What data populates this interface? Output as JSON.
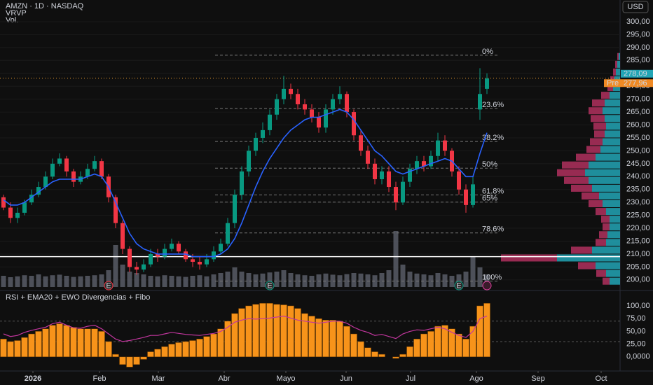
{
  "chart_data": [
    {
      "type": "candlestick",
      "title": "AMZN · 1D · NASDAQ",
      "indicators": [
        "VRVP",
        "Vol."
      ],
      "currency": "USD",
      "xlim": [
        -0.5,
        88
      ],
      "ylim": [
        196.7,
        308.4
      ],
      "xticks": [
        {
          "value": 4.2,
          "label": "2026"
        },
        {
          "value": 13.7,
          "label": "Feb"
        },
        {
          "value": 22.1,
          "label": "Mar"
        },
        {
          "value": 31.5,
          "label": "Abr"
        },
        {
          "value": 40.3,
          "label": "Mayo"
        },
        {
          "value": 48.9,
          "label": "Jun"
        },
        {
          "value": 58.1,
          "label": "Jul"
        },
        {
          "value": 67.5,
          "label": "Ago"
        },
        {
          "value": 76.3,
          "label": "Sep"
        },
        {
          "value": 85.3,
          "label": "Oct"
        }
      ],
      "yticks": [
        {
          "value": 200,
          "label": "200,00"
        },
        {
          "value": 205,
          "label": "205,00"
        },
        {
          "value": 210,
          "label": "210,00"
        },
        {
          "value": 215,
          "label": "215,00"
        },
        {
          "value": 220,
          "label": "220,00"
        },
        {
          "value": 225,
          "label": "225,00"
        },
        {
          "value": 230,
          "label": "230,00"
        },
        {
          "value": 235,
          "label": "235,00"
        },
        {
          "value": 240,
          "label": "240,00"
        },
        {
          "value": 245,
          "label": "245,00"
        },
        {
          "value": 250,
          "label": "250,00"
        },
        {
          "value": 255,
          "label": "255,00"
        },
        {
          "value": 260,
          "label": "260,00"
        },
        {
          "value": 265,
          "label": "265,00"
        },
        {
          "value": 270,
          "label": "270,00"
        },
        {
          "value": 275,
          "label": "275,00"
        },
        {
          "value": 280,
          "label": "280,00"
        },
        {
          "value": 285,
          "label": "285,00"
        },
        {
          "value": 290,
          "label": "290,00"
        },
        {
          "value": 295,
          "label": "295,00"
        },
        {
          "value": 300,
          "label": "300,00"
        }
      ],
      "up_color": "#089981",
      "down_color": "#f23645",
      "open": [
        232,
        228,
        224,
        226,
        230,
        233,
        236,
        240,
        245,
        247,
        242,
        238,
        240,
        243,
        246,
        240,
        232,
        222,
        212,
        205,
        204,
        206,
        210,
        209,
        212,
        214,
        211,
        208,
        207,
        206,
        208,
        211,
        214,
        222,
        233,
        242,
        250,
        255,
        258,
        264,
        270,
        274,
        272,
        268,
        266,
        263,
        259,
        266,
        270,
        272,
        265,
        256,
        250,
        245,
        239,
        242,
        236,
        230,
        238,
        243,
        246,
        244,
        248,
        254,
        250,
        242,
        235,
        229,
        266,
        274
      ],
      "high": [
        233,
        230,
        228,
        231,
        235,
        238,
        242,
        247,
        249,
        248,
        243,
        242,
        245,
        248,
        247,
        241,
        233,
        223,
        213,
        207,
        208,
        212,
        212,
        214,
        216,
        215,
        212,
        210,
        209,
        210,
        213,
        216,
        224,
        235,
        244,
        252,
        257,
        261,
        266,
        272,
        279,
        276,
        274,
        270,
        268,
        265,
        268,
        272,
        275,
        273,
        266,
        258,
        252,
        247,
        244,
        244,
        238,
        240,
        245,
        248,
        248,
        250,
        257,
        256,
        251,
        244,
        237,
        240,
        282,
        280
      ],
      "low": [
        227,
        222,
        222,
        225,
        229,
        232,
        235,
        239,
        244,
        240,
        236,
        237,
        239,
        242,
        239,
        230,
        220,
        210,
        203,
        202,
        203,
        205,
        207,
        208,
        211,
        210,
        207,
        205,
        204,
        205,
        207,
        210,
        213,
        220,
        231,
        240,
        248,
        253,
        256,
        262,
        268,
        270,
        266,
        264,
        261,
        257,
        257,
        264,
        268,
        263,
        254,
        248,
        243,
        237,
        237,
        234,
        227,
        229,
        236,
        241,
        242,
        243,
        246,
        248,
        240,
        233,
        226,
        228,
        262,
        272
      ],
      "close": [
        228,
        224,
        226,
        230,
        233,
        236,
        240,
        245,
        247,
        242,
        238,
        240,
        243,
        246,
        240,
        232,
        222,
        212,
        205,
        204,
        206,
        210,
        209,
        212,
        214,
        211,
        208,
        207,
        206,
        208,
        211,
        214,
        222,
        233,
        242,
        250,
        255,
        258,
        264,
        270,
        274,
        272,
        268,
        266,
        263,
        259,
        266,
        270,
        272,
        265,
        256,
        250,
        245,
        239,
        242,
        236,
        230,
        238,
        243,
        246,
        244,
        248,
        254,
        250,
        242,
        235,
        229,
        237,
        272,
        278
      ],
      "volume": {
        "color": "#5d606b",
        "values": [
          40,
          35,
          38,
          42,
          40,
          45,
          38,
          42,
          44,
          40,
          36,
          38,
          40,
          42,
          45,
          60,
          150,
          80,
          55,
          50,
          45,
          40,
          38,
          42,
          40,
          38,
          36,
          40,
          42,
          38,
          45,
          50,
          55,
          70,
          55,
          50,
          45,
          48,
          52,
          55,
          60,
          50,
          45,
          42,
          40,
          45,
          48,
          44,
          42,
          46,
          50,
          48,
          45,
          42,
          50,
          60,
          200,
          80,
          55,
          48,
          45,
          42,
          50,
          45,
          40,
          45,
          55,
          110,
          70,
          45
        ]
      },
      "ema": {
        "color": "#2962ff",
        "values": [
          231,
          229,
          229,
          230,
          232,
          234,
          236,
          238,
          239,
          239,
          239,
          239,
          240,
          241,
          240,
          236,
          230,
          224,
          218,
          214,
          212,
          211,
          210,
          210,
          210,
          210,
          210,
          209,
          209,
          209,
          209,
          210,
          212,
          216,
          222,
          229,
          236,
          242,
          247,
          251,
          255,
          258,
          260,
          262,
          263,
          263,
          264,
          265,
          266,
          265,
          262,
          258,
          254,
          250,
          248,
          245,
          242,
          241,
          242,
          243,
          244,
          245,
          246,
          247,
          246,
          243,
          240,
          240,
          249,
          257
        ]
      },
      "fib": [
        {
          "value": 287,
          "label": "0%"
        },
        {
          "value": 266.4,
          "label": "23.6%"
        },
        {
          "value": 253.6,
          "label": "38.2%"
        },
        {
          "value": 243.25,
          "label": "50%"
        },
        {
          "value": 232.9,
          "label": "61.8%"
        },
        {
          "value": 230.1,
          "label": "65%"
        },
        {
          "value": 218.2,
          "label": "78.6%"
        },
        {
          "value": 199.5,
          "label": "100%"
        }
      ],
      "hline": 209,
      "last_price": {
        "value": 278.09,
        "label": "278,09"
      },
      "pre_market": {
        "name": "Pre",
        "value": 277.96,
        "label": "277,96"
      },
      "events": [
        {
          "x": 15,
          "label": "E"
        },
        {
          "x": 38,
          "label": "E"
        },
        {
          "x": 65,
          "label": "E"
        }
      ],
      "profile": {
        "prices": [
          199.5,
          202.5,
          205.5,
          208.5,
          211.5,
          214.5,
          217.5,
          220.5,
          223.5,
          226.5,
          229.5,
          232.5,
          235.5,
          238.5,
          241.5,
          244.5,
          247.5,
          250.5,
          253.5,
          256.5,
          259.5,
          262.5,
          265.5,
          268.5,
          271.5,
          274.5,
          277.5,
          280.5,
          283.5,
          286.5
        ],
        "up": [
          15,
          20,
          35,
          90,
          40,
          20,
          18,
          15,
          15,
          20,
          25,
          30,
          40,
          45,
          50,
          45,
          35,
          28,
          25,
          22,
          20,
          22,
          25,
          22,
          15,
          10,
          8,
          6,
          4,
          2
        ],
        "down": [
          10,
          14,
          25,
          80,
          30,
          15,
          12,
          10,
          12,
          15,
          20,
          25,
          30,
          35,
          40,
          38,
          28,
          20,
          18,
          15,
          18,
          20,
          20,
          18,
          12,
          8,
          6,
          4,
          3,
          2
        ],
        "up_color": "#22a5b5",
        "down_color": "#b0305e"
      }
    },
    {
      "type": "bar",
      "title": "RSI + EMA20 + EWO Divergencias + Fibo",
      "ylim": [
        -14,
        126
      ],
      "yticks": [
        {
          "value": 0,
          "label": "0,0000"
        },
        {
          "value": 25,
          "label": "25,00"
        },
        {
          "value": 50,
          "label": "50,00"
        },
        {
          "value": 75,
          "label": "75,00"
        },
        {
          "value": 100,
          "label": "100,00"
        }
      ],
      "bands": [
        30,
        70
      ],
      "color": "#f7931a",
      "values": [
        35,
        30,
        32,
        38,
        45,
        50,
        55,
        62,
        65,
        62,
        58,
        55,
        55,
        55,
        50,
        30,
        5,
        -15,
        -20,
        -15,
        -5,
        10,
        15,
        20,
        25,
        28,
        30,
        32,
        35,
        40,
        45,
        55,
        70,
        85,
        95,
        100,
        103,
        105,
        105,
        103,
        102,
        100,
        95,
        85,
        80,
        75,
        72,
        72,
        70,
        60,
        45,
        30,
        18,
        10,
        5,
        0,
        -3,
        5,
        20,
        35,
        45,
        50,
        60,
        62,
        55,
        45,
        35,
        60,
        100,
        105
      ],
      "line": {
        "color": "#c2369e",
        "values": [
          45,
          40,
          42,
          48,
          52,
          55,
          58,
          65,
          68,
          62,
          57,
          56,
          60,
          62,
          55,
          45,
          35,
          30,
          32,
          35,
          38,
          42,
          42,
          45,
          48,
          46,
          44,
          43,
          42,
          44,
          46,
          50,
          58,
          68,
          72,
          75,
          74,
          75,
          76,
          78,
          80,
          76,
          72,
          70,
          68,
          66,
          68,
          70,
          70,
          66,
          58,
          52,
          48,
          42,
          44,
          40,
          36,
          45,
          50,
          53,
          52,
          55,
          58,
          55,
          48,
          42,
          38,
          50,
          75,
          80
        ]
      }
    }
  ]
}
